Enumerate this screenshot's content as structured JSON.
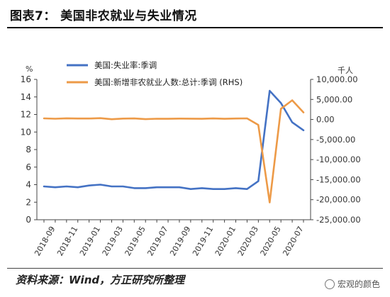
{
  "title": "图表7：  美国非农就业与失业情况",
  "source": "资料来源：Wind，方正研究所整理",
  "watermark": "宏观的颜色",
  "chart_data": {
    "type": "line",
    "left_unit": "%",
    "right_unit": "千人",
    "left_axis": {
      "min": 0,
      "max": 16,
      "ticks": [
        0,
        2,
        4,
        6,
        8,
        10,
        12,
        14,
        16
      ],
      "tick_labels": [
        "0",
        "2",
        "4",
        "6",
        "8",
        "10",
        "12",
        "14",
        "16"
      ]
    },
    "right_axis": {
      "min": -25000,
      "max": 10000,
      "ticks": [
        10000,
        5000,
        0,
        -5000,
        -10000,
        -15000,
        -20000,
        -25000
      ],
      "tick_labels": [
        "10,000.00",
        "5,000.00",
        "0.00",
        "-5,000.00",
        "-10,000.00",
        "-15,000.00",
        "-20,000.00",
        "-25,000.00"
      ]
    },
    "x_labels": [
      "2018-09",
      "2018-11",
      "2019-01",
      "2019-03",
      "2019-05",
      "2019-07",
      "2019-09",
      "2019-11",
      "2020-01",
      "2020-03",
      "2020-05",
      "2020-07"
    ],
    "x": [
      "2018-08",
      "2018-09",
      "2018-10",
      "2018-11",
      "2018-12",
      "2019-01",
      "2019-02",
      "2019-03",
      "2019-04",
      "2019-05",
      "2019-06",
      "2019-07",
      "2019-08",
      "2019-09",
      "2019-10",
      "2019-11",
      "2019-12",
      "2020-01",
      "2020-02",
      "2020-03",
      "2020-04",
      "2020-05",
      "2020-06",
      "2020-07"
    ],
    "series": [
      {
        "name": "美国:失业率:季调",
        "axis": "left",
        "color": "#4472c4",
        "values": [
          3.8,
          3.7,
          3.8,
          3.7,
          3.9,
          4.0,
          3.8,
          3.8,
          3.6,
          3.6,
          3.7,
          3.7,
          3.7,
          3.5,
          3.6,
          3.5,
          3.5,
          3.6,
          3.5,
          4.4,
          14.7,
          13.3,
          11.1,
          10.2
        ]
      },
      {
        "name": "美国:新增非农就业人数:总计:季调 (RHS)",
        "axis": "right",
        "color": "#ed9a47",
        "values": [
          280,
          190,
          300,
          250,
          250,
          330,
          60,
          220,
          260,
          90,
          190,
          170,
          230,
          210,
          180,
          260,
          180,
          250,
          270,
          -1370,
          -20680,
          2690,
          4780,
          1760
        ]
      }
    ]
  }
}
